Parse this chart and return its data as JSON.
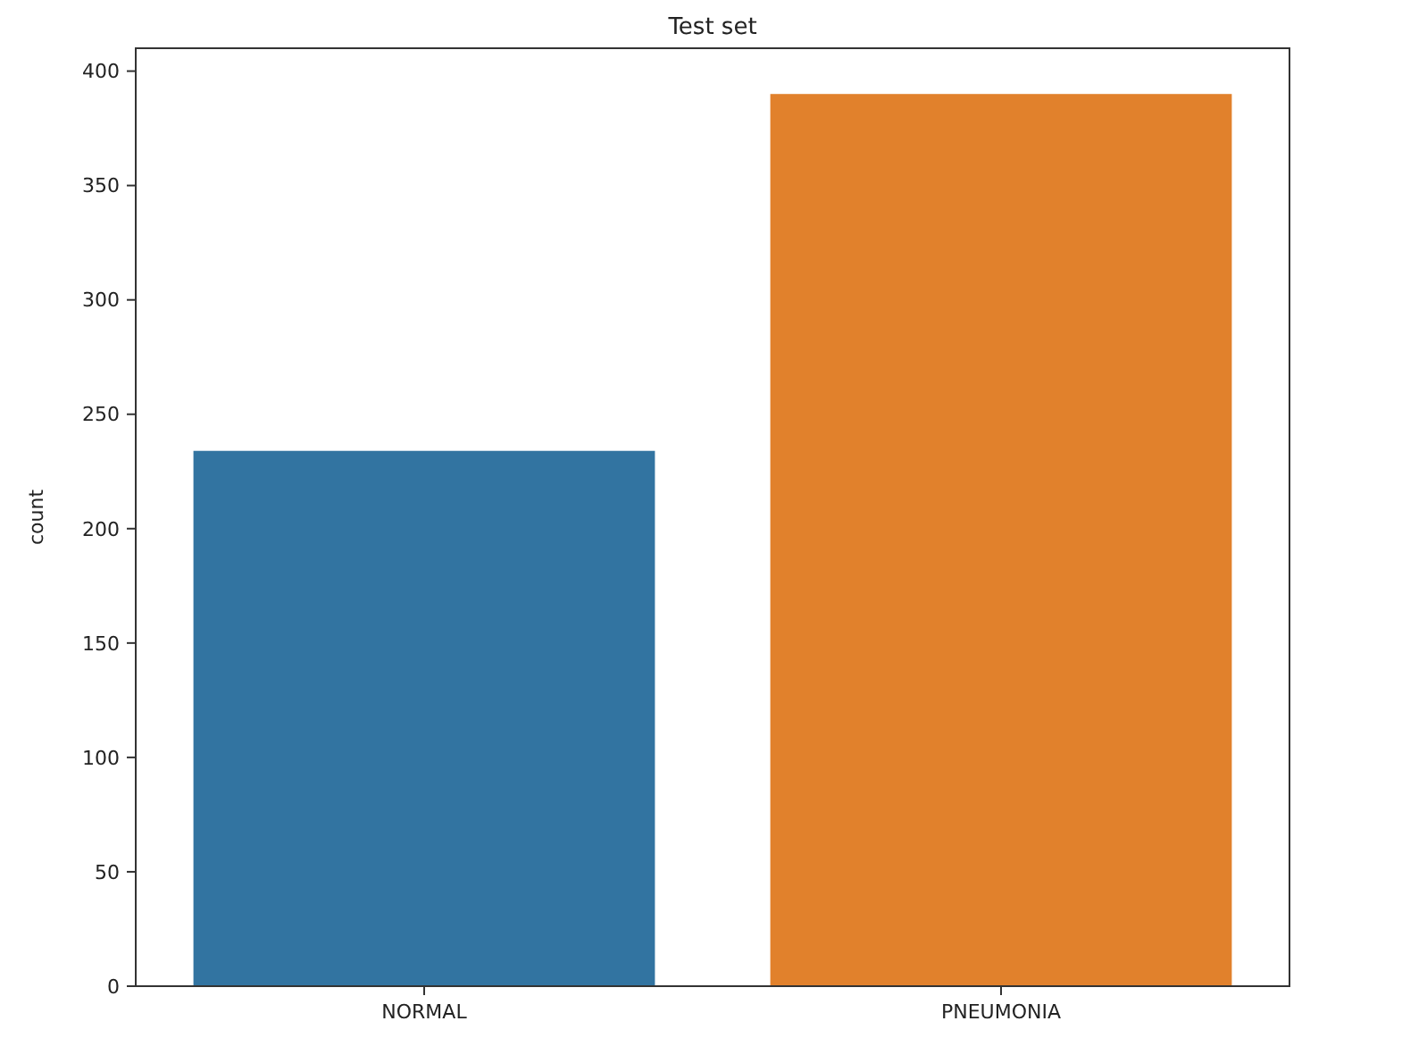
{
  "chart_data": {
    "type": "bar",
    "title": "Test set",
    "ylabel": "count",
    "categories": [
      "NORMAL",
      "PNEUMONIA"
    ],
    "values": [
      234,
      390
    ],
    "colors": [
      "#3274a1",
      "#e1812c"
    ],
    "ylim": [
      0,
      410
    ],
    "yticks": [
      0,
      50,
      100,
      150,
      200,
      250,
      300,
      350,
      400
    ],
    "grid": false
  }
}
